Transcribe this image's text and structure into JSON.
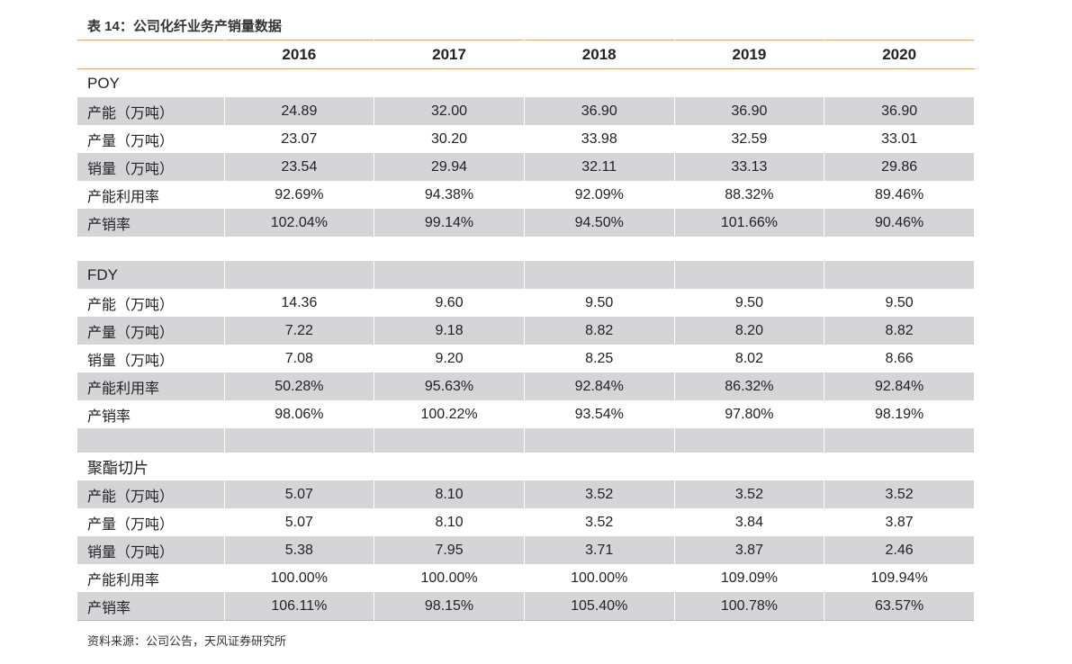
{
  "title": "表 14：公司化纤业务产销量数据",
  "header": [
    "2016",
    "2017",
    "2018",
    "2019",
    "2020"
  ],
  "sections": [
    {
      "name": "POY",
      "rows": [
        {
          "label": "产能（万吨）",
          "values": [
            "24.89",
            "32.00",
            "36.90",
            "36.90",
            "36.90"
          ]
        },
        {
          "label": "产量（万吨）",
          "values": [
            "23.07",
            "30.20",
            "33.98",
            "32.59",
            "33.01"
          ]
        },
        {
          "label": "销量（万吨）",
          "values": [
            "23.54",
            "29.94",
            "32.11",
            "33.13",
            "29.86"
          ]
        },
        {
          "label": "产能利用率",
          "values": [
            "92.69%",
            "94.38%",
            "92.09%",
            "88.32%",
            "89.46%"
          ]
        },
        {
          "label": "产销率",
          "values": [
            "102.04%",
            "99.14%",
            "94.50%",
            "101.66%",
            "90.46%"
          ]
        }
      ]
    },
    {
      "name": "FDY",
      "rows": [
        {
          "label": "产能（万吨）",
          "values": [
            "14.36",
            "9.60",
            "9.50",
            "9.50",
            "9.50"
          ]
        },
        {
          "label": "产量（万吨）",
          "values": [
            "7.22",
            "9.18",
            "8.82",
            "8.20",
            "8.82"
          ]
        },
        {
          "label": "销量（万吨）",
          "values": [
            "7.08",
            "9.20",
            "8.25",
            "8.02",
            "8.66"
          ]
        },
        {
          "label": "产能利用率",
          "values": [
            "50.28%",
            "95.63%",
            "92.84%",
            "86.32%",
            "92.84%"
          ]
        },
        {
          "label": "产销率",
          "values": [
            "98.06%",
            "100.22%",
            "93.54%",
            "97.80%",
            "98.19%"
          ]
        }
      ]
    },
    {
      "name": "聚酯切片",
      "rows": [
        {
          "label": "产能（万吨）",
          "values": [
            "5.07",
            "8.10",
            "3.52",
            "3.52",
            "3.52"
          ]
        },
        {
          "label": "产量（万吨）",
          "values": [
            "5.07",
            "8.10",
            "3.52",
            "3.84",
            "3.87"
          ]
        },
        {
          "label": "销量（万吨）",
          "values": [
            "5.38",
            "7.95",
            "3.71",
            "3.87",
            "2.46"
          ]
        },
        {
          "label": "产能利用率",
          "values": [
            "100.00%",
            "100.00%",
            "100.00%",
            "109.09%",
            "109.94%"
          ]
        },
        {
          "label": "产销率",
          "values": [
            "106.11%",
            "98.15%",
            "105.40%",
            "100.78%",
            "63.57%"
          ]
        }
      ]
    }
  ],
  "source": "资料来源：公司公告，天风证券研究所"
}
